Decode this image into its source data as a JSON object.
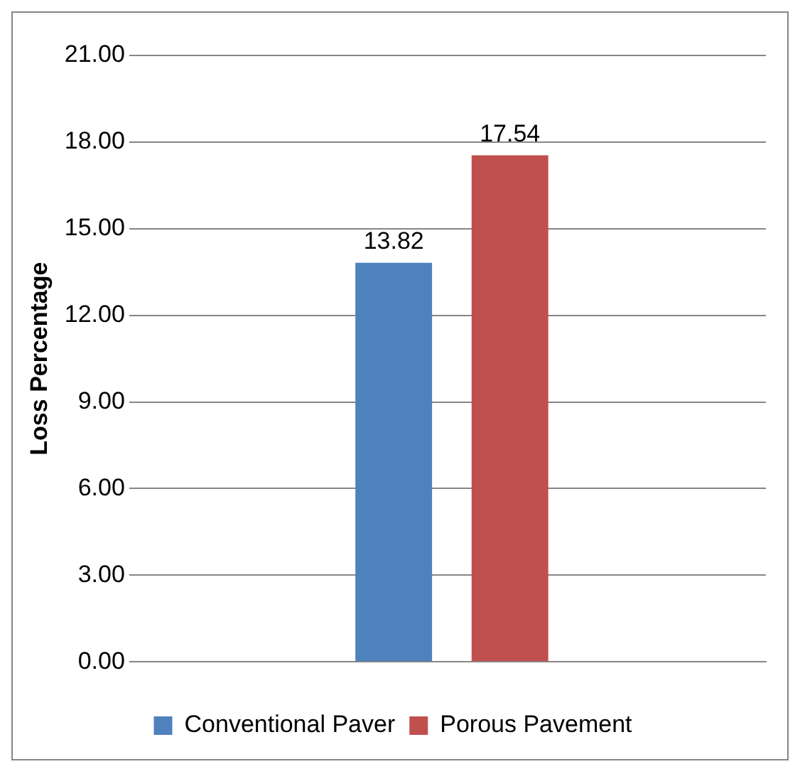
{
  "chart_data": {
    "type": "bar",
    "ylabel": "Loss Percentage",
    "categories": [
      null
    ],
    "series": [
      {
        "name": "Conventional Paver",
        "color": "#4f81bd",
        "values": [
          13.82
        ]
      },
      {
        "name": "Porous Pavement",
        "color": "#c0504d",
        "values": [
          17.54
        ]
      }
    ],
    "ylim": [
      0,
      21
    ],
    "yticks": [
      {
        "value": 0,
        "label": "0.00"
      },
      {
        "value": 3,
        "label": "3.00"
      },
      {
        "value": 6,
        "label": "6.00"
      },
      {
        "value": 9,
        "label": "9.00"
      },
      {
        "value": 12,
        "label": "12.00"
      },
      {
        "value": 15,
        "label": "15.00"
      },
      {
        "value": 18,
        "label": "18.00"
      },
      {
        "value": 21,
        "label": "21.00"
      }
    ],
    "grid": "y",
    "legend": "bottom",
    "data_labels": true
  }
}
